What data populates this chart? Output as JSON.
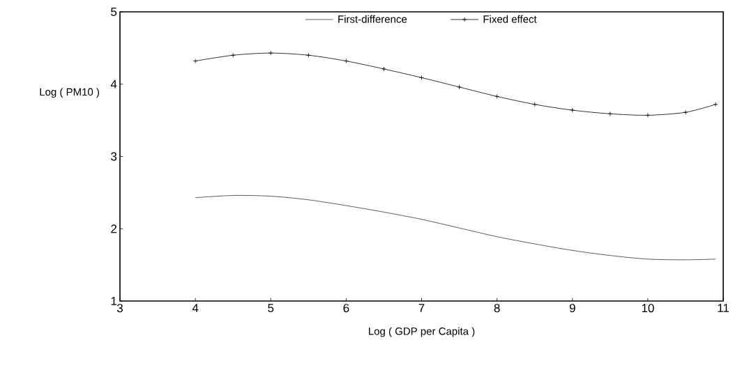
{
  "chart_data": {
    "type": "line",
    "xlabel": "Log ( GDP  per  Capita )",
    "ylabel": "Log ( PM10 )",
    "xlim": [
      3,
      11
    ],
    "xticks": [
      3,
      4,
      5,
      6,
      7,
      8,
      9,
      10,
      11
    ],
    "ylim": [
      1,
      5
    ],
    "yticks": [
      1,
      2,
      3,
      4,
      5
    ],
    "grid": false,
    "legend": "top",
    "x": [
      4,
      4.5,
      5,
      5.5,
      6,
      6.5,
      7,
      7.5,
      8,
      8.5,
      9,
      9.5,
      10,
      10.5,
      10.9
    ],
    "series": [
      {
        "name": "First-difference",
        "color": "#333333",
        "marker": "none",
        "values": [
          2.43,
          2.46,
          2.45,
          2.4,
          2.32,
          2.23,
          2.13,
          2.01,
          1.89,
          1.79,
          1.7,
          1.63,
          1.58,
          1.57,
          1.58
        ]
      },
      {
        "name": "Fixed effect",
        "color": "#000000",
        "marker": "cross",
        "values": [
          4.32,
          4.4,
          4.43,
          4.4,
          4.32,
          4.21,
          4.09,
          3.96,
          3.83,
          3.72,
          3.64,
          3.59,
          3.57,
          3.61,
          3.72
        ]
      }
    ]
  }
}
